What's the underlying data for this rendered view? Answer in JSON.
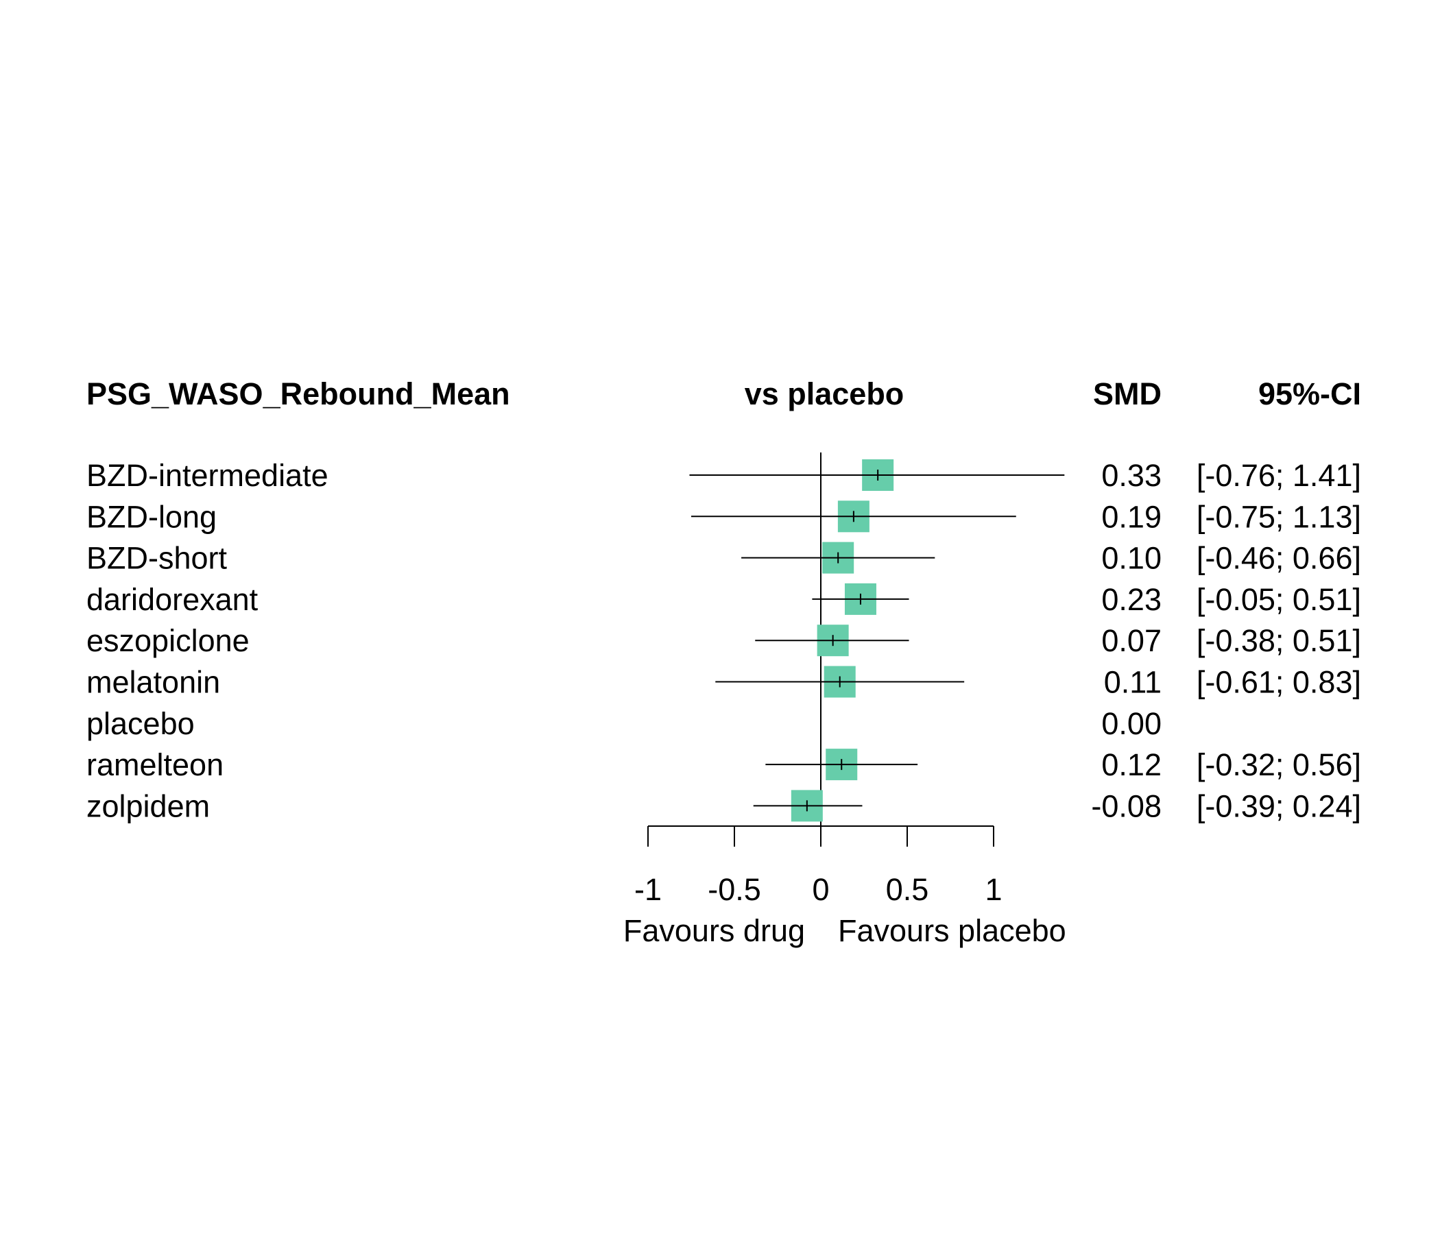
{
  "chart_data": {
    "type": "forest",
    "headers": {
      "study": "PSG_WASO_Rebound_Mean",
      "plot": "vs placebo",
      "effect": "SMD",
      "ci": "95%-CI"
    },
    "xlim": [
      -1,
      1
    ],
    "x_ticks": [
      -1,
      -0.5,
      0,
      0.5,
      1
    ],
    "x_tick_labels": [
      "-1",
      "-0.5",
      "0",
      "0.5",
      "1"
    ],
    "xlabel_left": "Favours drug",
    "xlabel_right": "Favours placebo",
    "reference_line": 0,
    "colors": {
      "square": "#66CDAA",
      "line": "#000000"
    },
    "rows": [
      {
        "label": "BZD-intermediate",
        "smd": 0.33,
        "lower": -0.76,
        "upper": 1.41,
        "smd_text": "0.33",
        "ci_text": "[-0.76; 1.41]"
      },
      {
        "label": "BZD-long",
        "smd": 0.19,
        "lower": -0.75,
        "upper": 1.13,
        "smd_text": "0.19",
        "ci_text": "[-0.75; 1.13]"
      },
      {
        "label": "BZD-short",
        "smd": 0.1,
        "lower": -0.46,
        "upper": 0.66,
        "smd_text": "0.10",
        "ci_text": "[-0.46; 0.66]"
      },
      {
        "label": "daridorexant",
        "smd": 0.23,
        "lower": -0.05,
        "upper": 0.51,
        "smd_text": "0.23",
        "ci_text": "[-0.05; 0.51]"
      },
      {
        "label": "eszopiclone",
        "smd": 0.07,
        "lower": -0.38,
        "upper": 0.51,
        "smd_text": "0.07",
        "ci_text": "[-0.38; 0.51]"
      },
      {
        "label": "melatonin",
        "smd": 0.11,
        "lower": -0.61,
        "upper": 0.83,
        "smd_text": "0.11",
        "ci_text": "[-0.61; 0.83]"
      },
      {
        "label": "placebo",
        "smd": 0.0,
        "lower": null,
        "upper": null,
        "smd_text": "0.00",
        "ci_text": ""
      },
      {
        "label": "ramelteon",
        "smd": 0.12,
        "lower": -0.32,
        "upper": 0.56,
        "smd_text": "0.12",
        "ci_text": "[-0.32; 0.56]"
      },
      {
        "label": "zolpidem",
        "smd": -0.08,
        "lower": -0.39,
        "upper": 0.24,
        "smd_text": "-0.08",
        "ci_text": "[-0.39; 0.24]"
      }
    ]
  }
}
